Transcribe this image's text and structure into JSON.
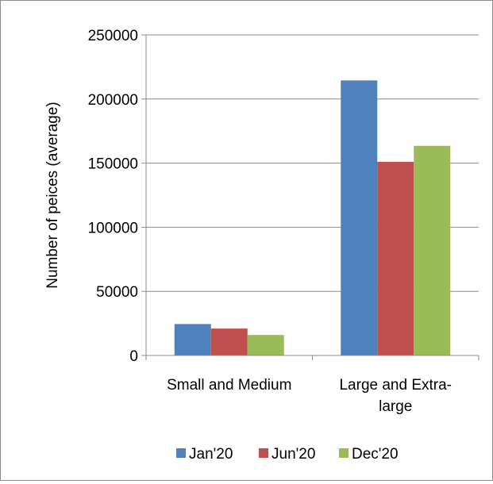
{
  "chart_data": {
    "type": "bar",
    "title": "",
    "xlabel": "",
    "ylabel": "Number of peices (average)",
    "ylim": [
      0,
      250000
    ],
    "yticks": [
      0,
      50000,
      100000,
      150000,
      200000,
      250000
    ],
    "categories": [
      "Small and Medium",
      "Large and Extra-large"
    ],
    "category_lines": [
      [
        "Small and Medium"
      ],
      [
        "Large and Extra-",
        "large"
      ]
    ],
    "series": [
      {
        "name": "Jan'20",
        "color": "#4f81bd",
        "values": [
          24500,
          214500
        ]
      },
      {
        "name": "Jun'20",
        "color": "#c0504d",
        "values": [
          21000,
          151000
        ]
      },
      {
        "name": "Dec'20",
        "color": "#9bbb59",
        "values": [
          16000,
          163500
        ]
      }
    ],
    "grid": true,
    "legend_position": "bottom"
  }
}
